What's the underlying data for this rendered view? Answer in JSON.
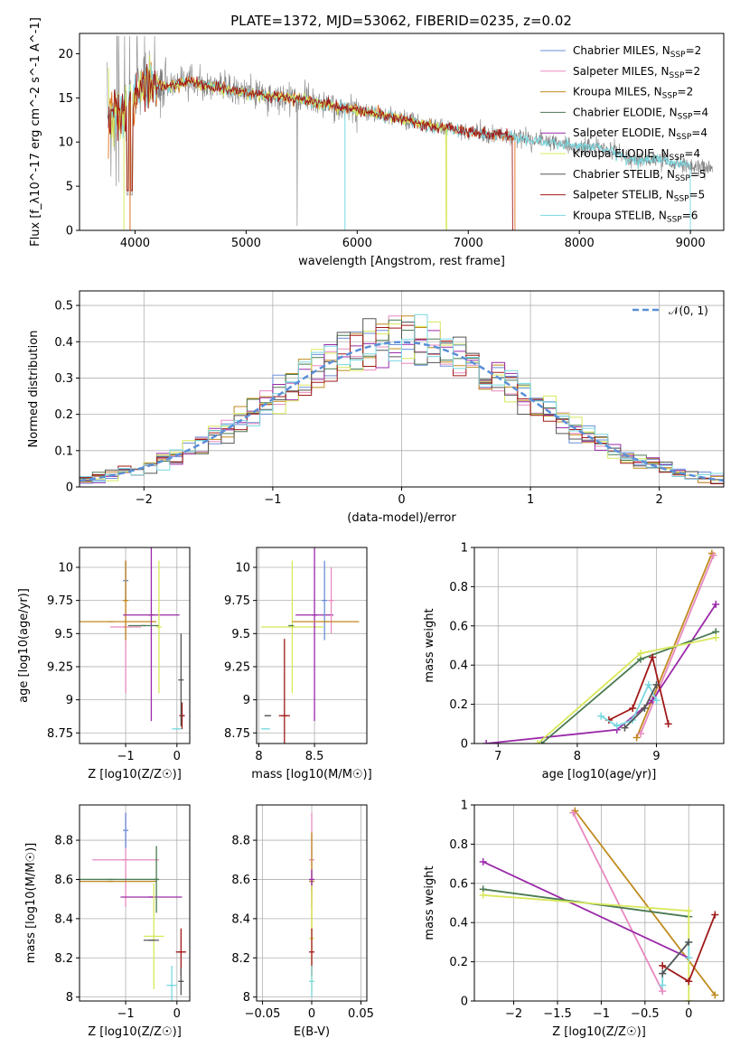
{
  "colors": {
    "Chabrier MILES": "#6a8fd8",
    "Salpeter MILES": "#e88ac0",
    "Kroupa MILES": "#c08a1e",
    "Chabrier ELODIE": "#4a7a52",
    "Salpeter ELODIE": "#9a2aa8",
    "Kroupa ELODIE": "#d8e85a",
    "Chabrier STELIB": "#555555",
    "Salpeter STELIB": "#a01818",
    "Kroupa STELIB": "#7ad8e0",
    "data": "#808080",
    "orange": "#e07020",
    "green": "#6aa030",
    "lime": "#c8ec60",
    "normal": "#5a8fd8"
  },
  "chart_data": [
    {
      "type": "line",
      "id": "spectrum",
      "title": "PLATE=1372, MJD=53062, FIBERID=0235, z=0.02",
      "xlabel": "wavelength [Angstrom, rest frame]",
      "ylabel": "Flux [f_λ10^-17 erg cm^-2 s^-1 A^-1]",
      "xlim": [
        3500,
        9300
      ],
      "ylim": [
        0,
        22.3
      ],
      "xticks": [
        4000,
        5000,
        6000,
        7000,
        8000,
        9000
      ],
      "yticks": [
        0,
        5,
        10,
        15,
        20
      ],
      "legend_position": "top-right",
      "legend": [
        {
          "name": "Chabrier MILES",
          "nssp": "2"
        },
        {
          "name": "Salpeter MILES",
          "nssp": "2"
        },
        {
          "name": "Kroupa MILES",
          "nssp": "2"
        },
        {
          "name": "Chabrier ELODIE",
          "nssp": "4"
        },
        {
          "name": "Salpeter ELODIE",
          "nssp": "4"
        },
        {
          "name": "Kroupa ELODIE",
          "nssp": "4"
        },
        {
          "name": "Chabrier STELIB",
          "nssp": "5"
        },
        {
          "name": "Salpeter STELIB",
          "nssp": "5"
        },
        {
          "name": "Kroupa STELIB",
          "nssp": "6"
        }
      ],
      "continuum": [
        [
          3750,
          13.0
        ],
        [
          3900,
          13.5
        ],
        [
          4000,
          15.5
        ],
        [
          4100,
          16.6
        ],
        [
          4300,
          16.4
        ],
        [
          4500,
          16.8
        ],
        [
          4800,
          16.0
        ],
        [
          5000,
          15.6
        ],
        [
          5200,
          15.3
        ],
        [
          5500,
          14.8
        ],
        [
          5800,
          14.0
        ],
        [
          6000,
          13.6
        ],
        [
          6300,
          12.9
        ],
        [
          6600,
          12.0
        ],
        [
          7000,
          11.2
        ],
        [
          7400,
          10.6
        ],
        [
          7700,
          10.0
        ],
        [
          8000,
          9.5
        ],
        [
          8200,
          9.3
        ],
        [
          8500,
          7.9
        ],
        [
          8700,
          8.0
        ],
        [
          9000,
          7.3
        ],
        [
          9200,
          7.0
        ]
      ]
    },
    {
      "type": "line",
      "id": "residuals",
      "xlabel": "(data-model)/error",
      "ylabel": "Normed distribution",
      "xlim": [
        -2.5,
        2.5
      ],
      "ylim": [
        0,
        0.54
      ],
      "xticks": [
        -2,
        -1,
        0,
        1,
        2
      ],
      "yticks": [
        0.0,
        0.1,
        0.2,
        0.3,
        0.4,
        0.5
      ],
      "grid": true,
      "legend_position": "top-right",
      "normal_label": "𝒩(0, 1)"
    },
    {
      "type": "scatter",
      "id": "age-vs-Z",
      "xlabel": "Z [log10(Z/Z☉)]",
      "ylabel": "age  [log10(age/yr)]",
      "xlim": [
        -1.9,
        0.25
      ],
      "ylim": [
        8.67,
        10.15
      ],
      "xticks": [
        -1,
        0
      ],
      "yticks": [
        8.75,
        9.0,
        9.25,
        9.5,
        9.75,
        10.0
      ],
      "grid": true,
      "points": [
        {
          "model": "Kroupa MILES",
          "x": -1.3,
          "y": 9.59,
          "xerr": 0.9,
          "yerr": 0.0
        },
        {
          "model": "Salpeter MILES",
          "x": -1.0,
          "y": 9.55,
          "xerr": 0.3,
          "yerr": 0.5
        },
        {
          "model": "Chabrier MILES",
          "x": -1.0,
          "y": 9.9,
          "xerr": 0.0,
          "yerr": 0.15
        },
        {
          "model": "Kroupa MILES",
          "x": -1.0,
          "y": 9.75,
          "xerr": 0.0,
          "yerr": 0.3
        },
        {
          "model": "Salpeter ELODIE",
          "x": -0.5,
          "y": 9.64,
          "xerr": 0.55,
          "yerr": 0.8
        },
        {
          "model": "Chabrier ELODIE",
          "x": -0.65,
          "y": 9.56,
          "xerr": 0.3,
          "yerr": 0.0
        },
        {
          "model": "Kroupa ELODIE",
          "x": -0.35,
          "y": 9.55,
          "xerr": 0.0,
          "yerr": 0.5
        },
        {
          "model": "Kroupa STELIB",
          "x": 0.0,
          "y": 8.78,
          "xerr": 0.1,
          "yerr": 0.0
        },
        {
          "model": "Salpeter STELIB",
          "x": 0.1,
          "y": 8.88,
          "xerr": 0.05,
          "yerr": 0.1
        },
        {
          "model": "Chabrier STELIB",
          "x": 0.08,
          "y": 9.15,
          "xerr": 0.0,
          "yerr": 0.35
        }
      ]
    },
    {
      "type": "scatter",
      "id": "age-vs-mass",
      "xlabel": "mass [log10(M/M☉)]",
      "ylabel": "",
      "xlim": [
        7.98,
        8.97
      ],
      "ylim": [
        8.67,
        10.15
      ],
      "xticks": [
        8.0,
        8.5
      ],
      "yticks": [
        8.75,
        9.0,
        9.25,
        9.5,
        9.75,
        10.0
      ],
      "grid": true,
      "points": [
        {
          "model": "Chabrier STELIB",
          "x": 8.08,
          "y": 8.88,
          "xerr": 0.03,
          "yerr": 0.0
        },
        {
          "model": "Kroupa STELIB",
          "x": 8.06,
          "y": 8.78,
          "xerr": 0.04,
          "yerr": 0.0
        },
        {
          "model": "Salpeter STELIB",
          "x": 8.23,
          "y": 8.88,
          "xerr": 0.05,
          "yerr": 0.58
        },
        {
          "model": "Kroupa ELODIE",
          "x": 8.3,
          "y": 9.55,
          "xerr": 0.28,
          "yerr": 0.5
        },
        {
          "model": "Chabrier ELODIE",
          "x": 8.29,
          "y": 9.56,
          "xerr": 0.0,
          "yerr": 0.0
        },
        {
          "model": "Salpeter ELODIE",
          "x": 8.5,
          "y": 9.64,
          "xerr": 0.17,
          "yerr": 0.8
        },
        {
          "model": "Chabrier MILES",
          "x": 8.59,
          "y": 9.75,
          "xerr": 0.0,
          "yerr": 0.3
        },
        {
          "model": "Salpeter MILES",
          "x": 8.65,
          "y": 9.75,
          "xerr": 0.0,
          "yerr": 0.25
        },
        {
          "model": "Kroupa MILES",
          "x": 8.6,
          "y": 9.59,
          "xerr": 0.3,
          "yerr": 0.0
        }
      ]
    },
    {
      "type": "line",
      "id": "weight-vs-age",
      "xlabel": "age  [log10(age/yr)]",
      "ylabel": "mass weight",
      "xlim": [
        6.7,
        9.85
      ],
      "ylim": [
        0,
        1.0
      ],
      "xticks": [
        7,
        8,
        9
      ],
      "yticks": [
        0.0,
        0.2,
        0.4,
        0.6,
        0.8,
        1.0
      ],
      "grid": true,
      "series": [
        {
          "model": "Kroupa MILES",
          "x": [
            8.75,
            9.7
          ],
          "y": [
            0.03,
            0.97
          ]
        },
        {
          "model": "Salpeter MILES",
          "x": [
            8.8,
            9.72
          ],
          "y": [
            0.05,
            0.96
          ]
        },
        {
          "model": "Salpeter ELODIE",
          "x": [
            6.85,
            8.5,
            8.95,
            9.75
          ],
          "y": [
            0.0,
            0.07,
            0.22,
            0.71
          ]
        },
        {
          "model": "Chabrier ELODIE",
          "x": [
            7.55,
            8.8,
            9.75
          ],
          "y": [
            0.0,
            0.43,
            0.57
          ]
        },
        {
          "model": "Kroupa ELODIE",
          "x": [
            7.5,
            8.8,
            9.75
          ],
          "y": [
            0.0,
            0.46,
            0.54
          ]
        },
        {
          "model": "Salpeter STELIB",
          "x": [
            8.4,
            8.7,
            8.95,
            9.15
          ],
          "y": [
            0.12,
            0.18,
            0.44,
            0.1
          ]
        },
        {
          "model": "Kroupa STELIB",
          "x": [
            8.3,
            8.5,
            8.7,
            8.9,
            9.0
          ],
          "y": [
            0.14,
            0.09,
            0.12,
            0.3,
            0.22
          ]
        },
        {
          "model": "Chabrier STELIB",
          "x": [
            8.6,
            8.85,
            9.0
          ],
          "y": [
            0.08,
            0.18,
            0.3
          ]
        }
      ]
    },
    {
      "type": "scatter",
      "id": "mass-vs-Z",
      "xlabel": "Z [log10(Z/Z☉)]",
      "ylabel": "mass [log10(M/M☉)]",
      "xlim": [
        -1.9,
        0.25
      ],
      "ylim": [
        7.98,
        8.98
      ],
      "xticks": [
        -1,
        0
      ],
      "yticks": [
        8.0,
        8.2,
        8.4,
        8.6,
        8.8
      ],
      "grid": true,
      "points": [
        {
          "model": "Salpeter MILES",
          "x": -1.0,
          "y": 8.7,
          "xerr": 0.65,
          "yerr": 0.24
        },
        {
          "model": "Chabrier MILES",
          "x": -1.0,
          "y": 8.85,
          "xerr": 0.0,
          "yerr": 0.09
        },
        {
          "model": "Kroupa MILES",
          "x": -1.3,
          "y": 8.59,
          "xerr": 0.9,
          "yerr": 0.0
        },
        {
          "model": "Chabrier ELODIE",
          "x": -1.3,
          "y": 8.6,
          "xerr": 0.95,
          "yerr": 0.0
        },
        {
          "model": "Salpeter ELODIE",
          "x": -0.5,
          "y": 8.51,
          "xerr": 0.6,
          "yerr": 0.0
        },
        {
          "model": "Chabrier ELODIE",
          "x": -0.4,
          "y": 8.6,
          "xerr": 0.0,
          "yerr": 0.17
        },
        {
          "model": "Kroupa ELODIE",
          "x": -0.45,
          "y": 8.31,
          "xerr": 0.2,
          "yerr": 0.27
        },
        {
          "model": "Chabrier STELIB",
          "x": -0.5,
          "y": 8.29,
          "xerr": 0.15,
          "yerr": 0.0
        },
        {
          "model": "Salpeter STELIB",
          "x": 0.08,
          "y": 8.23,
          "xerr": 0.1,
          "yerr": 0.12
        },
        {
          "model": "Kroupa STELIB",
          "x": -0.1,
          "y": 8.06,
          "xerr": 0.1,
          "yerr": 0.1
        },
        {
          "model": "Chabrier STELIB",
          "x": 0.08,
          "y": 8.08,
          "xerr": 0.05,
          "yerr": 0.07
        }
      ]
    },
    {
      "type": "scatter",
      "id": "mass-vs-ebv",
      "xlabel": "E(B-V)",
      "ylabel": "",
      "xlim": [
        -0.056,
        0.056
      ],
      "ylim": [
        7.98,
        8.98
      ],
      "xticks": [
        -0.05,
        0.0,
        0.05
      ],
      "yticks": [
        8.0,
        8.2,
        8.4,
        8.6,
        8.8
      ],
      "grid": true,
      "points": [
        {
          "model": "Salpeter MILES",
          "x": 0.0,
          "y": 8.7,
          "xerr": 0.0,
          "yerr": 0.24
        },
        {
          "model": "Kroupa MILES",
          "x": 0.0,
          "y": 8.59,
          "xerr": 0.0,
          "yerr": 0.25
        },
        {
          "model": "Salpeter ELODIE",
          "x": 0.0,
          "y": 8.6,
          "xerr": 0.0,
          "yerr": 0.05
        },
        {
          "model": "Kroupa ELODIE",
          "x": 0.0,
          "y": 8.3,
          "xerr": 0.0,
          "yerr": 0.27
        },
        {
          "model": "Salpeter STELIB",
          "x": 0.0,
          "y": 8.23,
          "xerr": 0.0,
          "yerr": 0.12
        },
        {
          "model": "Kroupa STELIB",
          "x": 0.0,
          "y": 8.08,
          "xerr": 0.0,
          "yerr": 0.08
        }
      ]
    },
    {
      "type": "line",
      "id": "weight-vs-Z",
      "xlabel": "Z [log10(Z/Z☉)]",
      "ylabel": "mass weight",
      "xlim": [
        -2.45,
        0.4
      ],
      "ylim": [
        0,
        1.0
      ],
      "xticks": [
        -2.0,
        -1.5,
        -1.0,
        -0.5,
        0.0
      ],
      "yticks": [
        0.0,
        0.2,
        0.4,
        0.6,
        0.8,
        1.0
      ],
      "grid": true,
      "series": [
        {
          "model": "Kroupa MILES",
          "x": [
            -1.3,
            0.3
          ],
          "y": [
            0.97,
            0.03
          ]
        },
        {
          "model": "Salpeter MILES",
          "x": [
            -1.32,
            -0.3
          ],
          "y": [
            0.96,
            0.05
          ]
        },
        {
          "model": "Salpeter ELODIE",
          "x": [
            -2.35,
            0.0
          ],
          "y": [
            0.71,
            0.22
          ]
        },
        {
          "model": "Chabrier ELODIE",
          "x": [
            -2.35,
            0.0
          ],
          "y": [
            0.57,
            0.43
          ]
        },
        {
          "model": "Kroupa ELODIE",
          "x": [
            -2.35,
            0.0,
            0.0
          ],
          "y": [
            0.54,
            0.46,
            0.0
          ]
        },
        {
          "model": "Salpeter STELIB",
          "x": [
            -0.3,
            0.0,
            0.3
          ],
          "y": [
            0.18,
            0.1,
            0.44
          ]
        },
        {
          "model": "Kroupa STELIB",
          "x": [
            -0.3,
            -0.3,
            0.0,
            0.0
          ],
          "y": [
            0.08,
            0.14,
            0.3,
            0.22
          ]
        },
        {
          "model": "Chabrier STELIB",
          "x": [
            -0.3,
            0.0
          ],
          "y": [
            0.14,
            0.3
          ]
        }
      ]
    }
  ]
}
